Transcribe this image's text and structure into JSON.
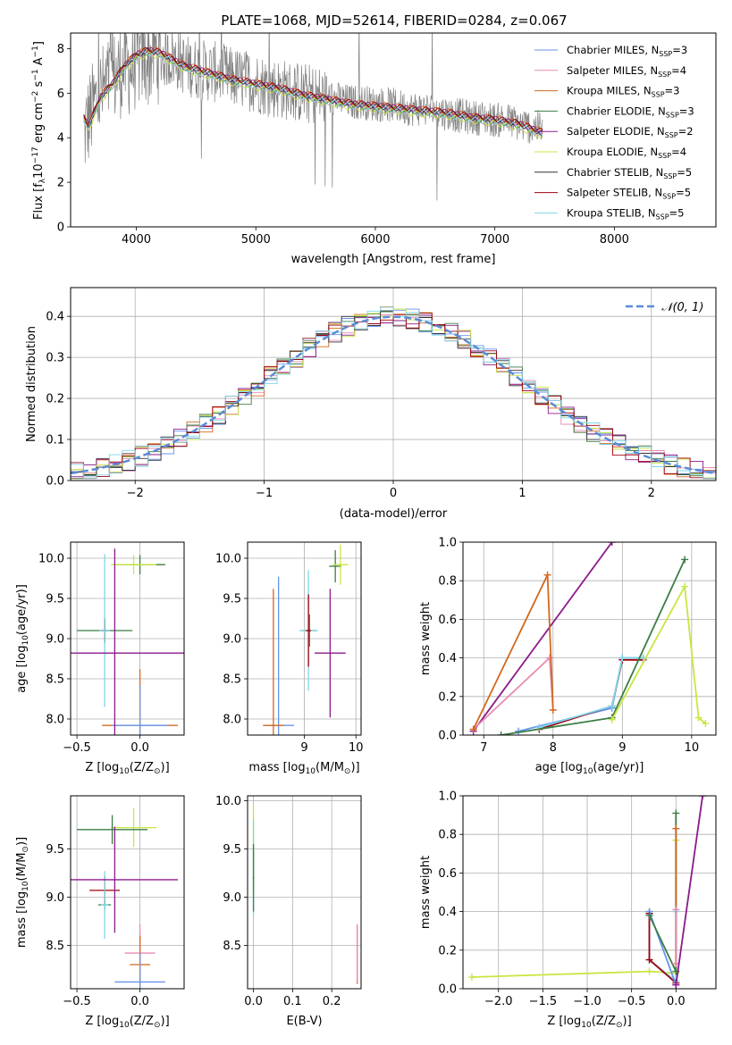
{
  "figure_title": "PLATE=1068, MJD=52614, FIBERID=0284, z=0.067",
  "legend_items": [
    {
      "base": "Chabrier MILES, N",
      "sub": "SSP",
      "tail": "=3",
      "color": "#6495ed"
    },
    {
      "base": "Salpeter MILES, N",
      "sub": "SSP",
      "tail": "=4",
      "color": "#e88cb3"
    },
    {
      "base": "Kroupa MILES, N",
      "sub": "SSP",
      "tail": "=3",
      "color": "#d2691e"
    },
    {
      "base": "Chabrier ELODIE, N",
      "sub": "SSP",
      "tail": "=3",
      "color": "#3a7d44"
    },
    {
      "base": "Salpeter ELODIE, N",
      "sub": "SSP",
      "tail": "=2",
      "color": "#8b1a8b"
    },
    {
      "base": "Kroupa ELODIE, N",
      "sub": "SSP",
      "tail": "=4",
      "color": "#c8e640"
    },
    {
      "base": "Chabrier STELIB, N",
      "sub": "SSP",
      "tail": "=5",
      "color": "#333333"
    },
    {
      "base": "Salpeter STELIB, N",
      "sub": "SSP",
      "tail": "=5",
      "color": "#a00010"
    },
    {
      "base": "Kroupa STELIB, N",
      "sub": "SSP",
      "tail": "=5",
      "color": "#7fd6e8"
    }
  ],
  "chart_data": [
    {
      "id": "spectrum",
      "type": "line",
      "xlabel": "wavelength [Angstrom, rest frame]",
      "ylabel": "Flux [f",
      "ylabel_sub": "λ",
      "ylabel_mid": "10",
      "ylabel_sup1": "−17",
      "ylabel_tail": " erg cm",
      "ylabel_sup2": "−2",
      "ylabel_tail2": " s",
      "ylabel_sup3": "−1",
      "ylabel_tail3": " A",
      "ylabel_sup4": "−1",
      "ylabel_end": "]",
      "xlim": [
        3450,
        8850
      ],
      "ylim": [
        0,
        8.7
      ],
      "xticks": [
        4000,
        5000,
        6000,
        7000,
        8000
      ],
      "yticks": [
        0,
        2,
        4,
        6,
        8
      ],
      "observed": {
        "color": "#808080",
        "x": [
          3560,
          3600,
          3650,
          3700,
          3750,
          3800,
          3850,
          3900,
          3950,
          4000,
          4050,
          4100,
          4150,
          4200,
          4300,
          4400,
          4500,
          4600,
          4700,
          4800,
          4900,
          5000,
          5100,
          5200,
          5300,
          5400,
          5500,
          5600,
          5700,
          5800,
          5900,
          6000,
          6100,
          6200,
          6300,
          6400,
          6500,
          6600,
          6700,
          6800,
          6900,
          7000,
          7100,
          7200,
          7300,
          7400
        ],
        "y": [
          4.1,
          4.8,
          5.5,
          6.0,
          6.3,
          6.6,
          6.9,
          7.2,
          7.1,
          7.4,
          7.6,
          7.5,
          7.8,
          7.6,
          7.6,
          7.3,
          7.1,
          7.0,
          6.9,
          6.7,
          6.6,
          6.5,
          6.3,
          6.2,
          6.1,
          6.0,
          5.9,
          5.8,
          5.7,
          5.6,
          5.6,
          5.5,
          5.5,
          5.4,
          5.3,
          5.3,
          5.2,
          5.1,
          5.0,
          4.9,
          4.9,
          4.8,
          4.8,
          4.6,
          4.5,
          4.4
        ]
      },
      "model_offsets": [
        0.0,
        -0.1,
        0.1,
        -0.05,
        0.05,
        -0.15,
        0.02,
        0.08,
        -0.08
      ],
      "model": {
        "x": [
          3560,
          3600,
          3700,
          3800,
          3900,
          4000,
          4100,
          4200,
          4400,
          4600,
          4800,
          5000,
          5200,
          5400,
          5600,
          5800,
          6000,
          6200,
          6400,
          6600,
          6800,
          7000,
          7200,
          7400
        ],
        "y": [
          4.9,
          4.5,
          5.8,
          6.4,
          7.2,
          7.7,
          7.9,
          7.8,
          7.2,
          6.9,
          6.6,
          6.4,
          6.2,
          5.9,
          5.7,
          5.5,
          5.4,
          5.3,
          5.2,
          5.1,
          4.9,
          4.8,
          4.6,
          4.2
        ]
      }
    },
    {
      "id": "residuals",
      "type": "line",
      "xlabel": "(data-model)/error",
      "ylabel": "Normed distribution",
      "legend_label": "𝒩(0, 1)",
      "gaussian_color": "#5b8cd6",
      "xlim": [
        -2.5,
        2.5
      ],
      "ylim": [
        0,
        0.47
      ],
      "xticks": [
        -2,
        -1,
        0,
        1,
        2
      ],
      "yticks": [
        0.0,
        0.1,
        0.2,
        0.3,
        0.4
      ],
      "bin_width": 0.1
    },
    {
      "id": "age_vs_Z",
      "type": "scatter",
      "xlabel": "Z [log",
      "xlabel_sub": "10",
      "xlabel_tail": "(Z/Z",
      "xlabel_sub2": "⊙",
      "xlabel_end": ")]",
      "ylabel": "age  [log",
      "ylabel_sub": "10",
      "ylabel_tail": "(age/yr)]",
      "xlim": [
        -0.55,
        0.35
      ],
      "ylim": [
        7.8,
        10.2
      ],
      "xticks": [
        -0.5,
        0.0
      ],
      "yticks": [
        8.0,
        8.5,
        9.0,
        9.5,
        10.0
      ],
      "points": [
        {
          "x": -0.28,
          "y": 9.1,
          "xerr": 0.22,
          "yerr": 0.15,
          "color": "#3a7d44"
        },
        {
          "x": 0.0,
          "y": 9.92,
          "xerr": 0.2,
          "yerr": 0.12,
          "color": "#3a7d44"
        },
        {
          "x": -0.28,
          "y": 9.1,
          "xerr": 0.03,
          "yerr": 0.15,
          "color": "#a00010"
        },
        {
          "x": -0.28,
          "y": 9.1,
          "xerr": 0.04,
          "yerr": 0.95,
          "color": "#7fd6e8"
        },
        {
          "x": -0.05,
          "y": 9.92,
          "xerr": 0.18,
          "yerr": 0.12,
          "color": "#c8e640"
        },
        {
          "x": 0.0,
          "y": 7.92,
          "xerr": 0.3,
          "yerr": 0.7,
          "color": "#d2691e"
        },
        {
          "x": 0.0,
          "y": 7.92,
          "xerr": 0.22,
          "yerr": 0.5,
          "color": "#6495ed"
        },
        {
          "x": -0.2,
          "y": 8.82,
          "xerr": 0.6,
          "yerr": 1.3,
          "color": "#8b1a8b"
        }
      ]
    },
    {
      "id": "age_vs_mass",
      "type": "scatter",
      "xlabel": "mass [log",
      "xlabel_sub": "10",
      "xlabel_tail": "(M/M",
      "xlabel_sub2": "⊙",
      "xlabel_end": ")]",
      "ylabel": "",
      "xlim": [
        7.9,
        10.1
      ],
      "ylim": [
        7.8,
        10.2
      ],
      "xticks": [
        9,
        10
      ],
      "yticks": [
        8.0,
        8.5,
        9.0,
        9.5,
        10.0
      ],
      "points": [
        {
          "x": 9.1,
          "y": 9.1,
          "xerr": 0.15,
          "yerr": 0.2,
          "color": "#3a7d44"
        },
        {
          "x": 9.6,
          "y": 9.9,
          "xerr": 0.12,
          "yerr": 0.2,
          "color": "#3a7d44"
        },
        {
          "x": 9.7,
          "y": 9.92,
          "xerr": 0.15,
          "yerr": 0.25,
          "color": "#c8e640"
        },
        {
          "x": 9.08,
          "y": 9.1,
          "xerr": 0.18,
          "yerr": 0.75,
          "color": "#7fd6e8"
        },
        {
          "x": 9.08,
          "y": 9.1,
          "xerr": 0.05,
          "yerr": 0.45,
          "color": "#a00010"
        },
        {
          "x": 8.5,
          "y": 7.92,
          "xerr": 0.3,
          "yerr": 1.85,
          "color": "#6495ed"
        },
        {
          "x": 8.4,
          "y": 7.92,
          "xerr": 0.2,
          "yerr": 1.7,
          "color": "#d2691e"
        },
        {
          "x": 9.5,
          "y": 8.82,
          "xerr": 0.3,
          "yerr": 0.8,
          "color": "#8b1a8b"
        }
      ]
    },
    {
      "id": "massweight_vs_age",
      "type": "line",
      "xlabel": "age  [log",
      "xlabel_sub": "10",
      "xlabel_tail": "(age/yr)]",
      "ylabel": "mass weight",
      "xlim": [
        6.7,
        10.35
      ],
      "ylim": [
        0,
        1.0
      ],
      "xticks": [
        7,
        8,
        9,
        10
      ],
      "yticks": [
        0.0,
        0.2,
        0.4,
        0.6,
        0.8,
        1.0
      ],
      "series": [
        {
          "color": "#8b1a8b",
          "x": [
            6.85,
            8.85
          ],
          "y": [
            0.02,
            1.0
          ]
        },
        {
          "color": "#e88cb3",
          "x": [
            6.85,
            7.95,
            8.0
          ],
          "y": [
            0.03,
            0.4,
            0.13
          ]
        },
        {
          "color": "#d2691e",
          "x": [
            6.85,
            7.92,
            8.0
          ],
          "y": [
            0.03,
            0.83,
            0.13
          ]
        },
        {
          "color": "#6495ed",
          "x": [
            7.5,
            8.85,
            9.0,
            9.3
          ],
          "y": [
            0.02,
            0.14,
            0.4,
            0.4
          ]
        },
        {
          "color": "#a00010",
          "x": [
            7.8,
            8.85,
            9.0,
            9.3
          ],
          "y": [
            0.03,
            0.15,
            0.39,
            0.39
          ]
        },
        {
          "color": "#7fd6e8",
          "x": [
            7.8,
            8.85,
            9.0,
            9.3
          ],
          "y": [
            0.04,
            0.15,
            0.4,
            0.4
          ]
        },
        {
          "color": "#3a7d44",
          "x": [
            7.25,
            8.85,
            9.9
          ],
          "y": [
            0.0,
            0.09,
            0.91
          ]
        },
        {
          "color": "#c8e640",
          "x": [
            8.85,
            9.9,
            10.1,
            10.2
          ],
          "y": [
            0.08,
            0.77,
            0.09,
            0.06
          ]
        }
      ]
    },
    {
      "id": "mass_vs_Z",
      "type": "scatter",
      "xlabel": "Z [log",
      "xlabel_sub": "10",
      "xlabel_tail": "(Z/Z",
      "xlabel_sub2": "⊙",
      "xlabel_end": ")]",
      "ylabel": "mass [log",
      "ylabel_sub": "10",
      "ylabel_tail": "(M/M",
      "ylabel_sub2": "⊙",
      "ylabel_end": ")]",
      "xlim": [
        -0.55,
        0.35
      ],
      "ylim": [
        8.05,
        10.05
      ],
      "xticks": [
        -0.5,
        0.0
      ],
      "yticks": [
        8.5,
        9.0,
        9.5
      ],
      "points": [
        {
          "x": -0.05,
          "y": 9.72,
          "xerr": 0.18,
          "yerr": 0.2,
          "color": "#c8e640"
        },
        {
          "x": -0.22,
          "y": 9.7,
          "xerr": 0.28,
          "yerr": 0.15,
          "color": "#3a7d44"
        },
        {
          "x": -0.28,
          "y": 8.92,
          "xerr": 0.05,
          "yerr": 0.05,
          "color": "#3a7d44"
        },
        {
          "x": -0.28,
          "y": 9.07,
          "xerr": 0.12,
          "yerr": 0.15,
          "color": "#a00010"
        },
        {
          "x": -0.28,
          "y": 8.92,
          "xerr": 0.03,
          "yerr": 0.35,
          "color": "#7fd6e8"
        },
        {
          "x": 0.0,
          "y": 8.42,
          "xerr": 0.12,
          "yerr": 0.3,
          "color": "#e88cb3"
        },
        {
          "x": 0.0,
          "y": 8.3,
          "xerr": 0.08,
          "yerr": 0.3,
          "color": "#d2691e"
        },
        {
          "x": 0.0,
          "y": 8.12,
          "xerr": 0.2,
          "yerr": 0.3,
          "color": "#6495ed"
        },
        {
          "x": -0.2,
          "y": 9.18,
          "xerr": 0.5,
          "yerr": 0.55,
          "color": "#8b1a8b"
        }
      ]
    },
    {
      "id": "mass_vs_ebv",
      "type": "scatter",
      "xlabel": "E(B-V)",
      "ylabel": "",
      "xlim": [
        -0.015,
        0.275
      ],
      "ylim": [
        8.05,
        10.05
      ],
      "xticks": [
        0.0,
        0.1,
        0.2
      ],
      "yticks": [
        8.5,
        9.0,
        9.5,
        10.0
      ],
      "points": [
        {
          "x": 0.0,
          "y": 9.5,
          "xerr": 0.002,
          "yerr": 0.45,
          "color": "#c8e640"
        },
        {
          "x": 0.0,
          "y": 9.3,
          "xerr": 0.002,
          "yerr": 0.5,
          "color": "#7fd6e8"
        },
        {
          "x": 0.0,
          "y": 9.2,
          "xerr": 0.002,
          "yerr": 0.35,
          "color": "#3a7d44"
        },
        {
          "x": 0.265,
          "y": 8.4,
          "xerr": 0.001,
          "yerr": 0.3,
          "color": "#d2691e"
        },
        {
          "x": 0.265,
          "y": 8.42,
          "xerr": 0.001,
          "yerr": 0.3,
          "color": "#e88cb3"
        }
      ]
    },
    {
      "id": "massweight_vs_Z",
      "type": "line",
      "xlabel": "Z [log",
      "xlabel_sub": "10",
      "xlabel_tail": "(Z/Z",
      "xlabel_sub2": "⊙",
      "xlabel_end": ")]",
      "ylabel": "mass weight",
      "xlim": [
        -2.4,
        0.45
      ],
      "ylim": [
        0,
        1.0
      ],
      "xticks": [
        -2.0,
        -1.5,
        -1.0,
        -0.5,
        0.0
      ],
      "yticks": [
        0.0,
        0.2,
        0.4,
        0.6,
        0.8,
        1.0
      ],
      "series": [
        {
          "color": "#c8e640",
          "x": [
            -2.3,
            -0.3,
            0.0,
            0.0
          ],
          "y": [
            0.06,
            0.09,
            0.08,
            0.77
          ]
        },
        {
          "color": "#7fd6e8",
          "x": [
            -0.3,
            -0.3,
            0.0,
            0.0
          ],
          "y": [
            0.4,
            0.15,
            0.04,
            0.4
          ]
        },
        {
          "color": "#a00010",
          "x": [
            -0.3,
            -0.3,
            0.0
          ],
          "y": [
            0.39,
            0.15,
            0.03
          ]
        },
        {
          "color": "#6495ed",
          "x": [
            -0.3,
            0.0
          ],
          "y": [
            0.4,
            0.02
          ]
        },
        {
          "color": "#3a7d44",
          "x": [
            -0.3,
            0.0,
            0.0
          ],
          "y": [
            0.38,
            0.09,
            0.91
          ]
        },
        {
          "color": "#d2691e",
          "x": [
            0.0,
            0.0
          ],
          "y": [
            0.13,
            0.83
          ]
        },
        {
          "color": "#e88cb3",
          "x": [
            0.0,
            0.0
          ],
          "y": [
            0.13,
            0.41
          ]
        },
        {
          "color": "#8b1a8b",
          "x": [
            0.0,
            0.3
          ],
          "y": [
            0.02,
            1.0
          ]
        }
      ]
    }
  ]
}
